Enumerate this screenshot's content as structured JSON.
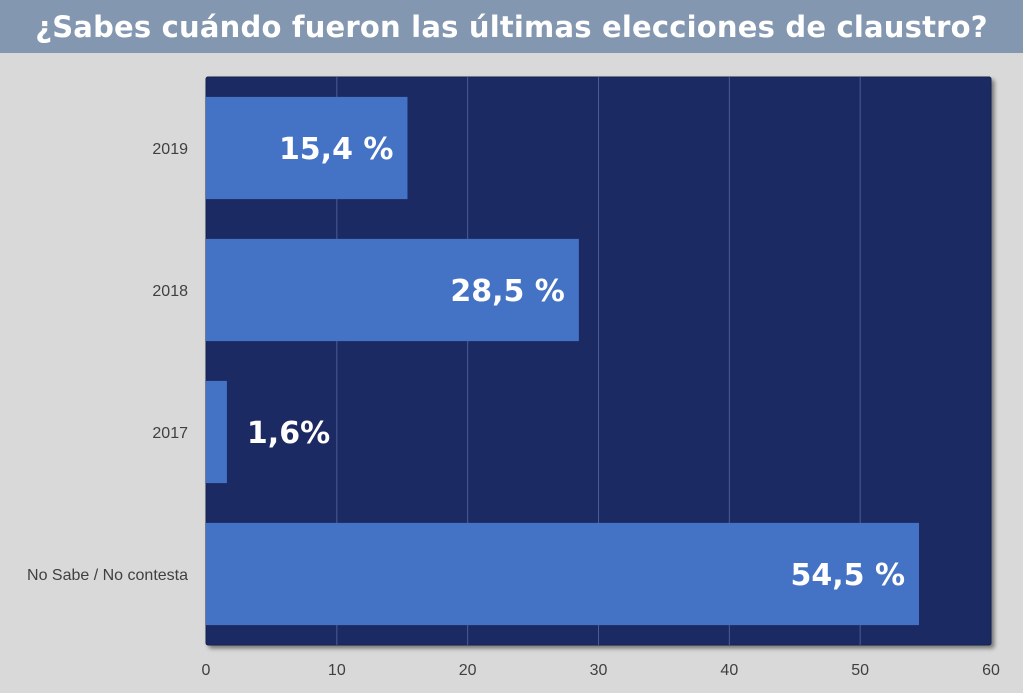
{
  "chart_data": {
    "type": "bar",
    "orientation": "horizontal",
    "title": "¿Sabes cuándo fueron las últimas elecciones de claustro?",
    "categories": [
      "2019",
      "2018",
      "2017",
      "No Sabe / No contesta"
    ],
    "values": [
      15.4,
      28.5,
      1.6,
      54.5
    ],
    "data_labels": [
      "15,4 %",
      "28,5 %",
      "1,6%",
      "54,5 %"
    ],
    "xlim": [
      0,
      60
    ],
    "x_ticks": [
      0,
      10,
      20,
      30,
      40,
      50,
      60
    ],
    "xlabel": "",
    "ylabel": "",
    "grid": "vertical",
    "legend": "none",
    "colors": {
      "title_band": "#8497b0",
      "background": "#d9d9d9",
      "plot_area": "#1f2b63",
      "bar": "#4472c4",
      "gridline": "#4a5d96",
      "label_text": "#ffffff",
      "axis_text": "#404040"
    }
  }
}
